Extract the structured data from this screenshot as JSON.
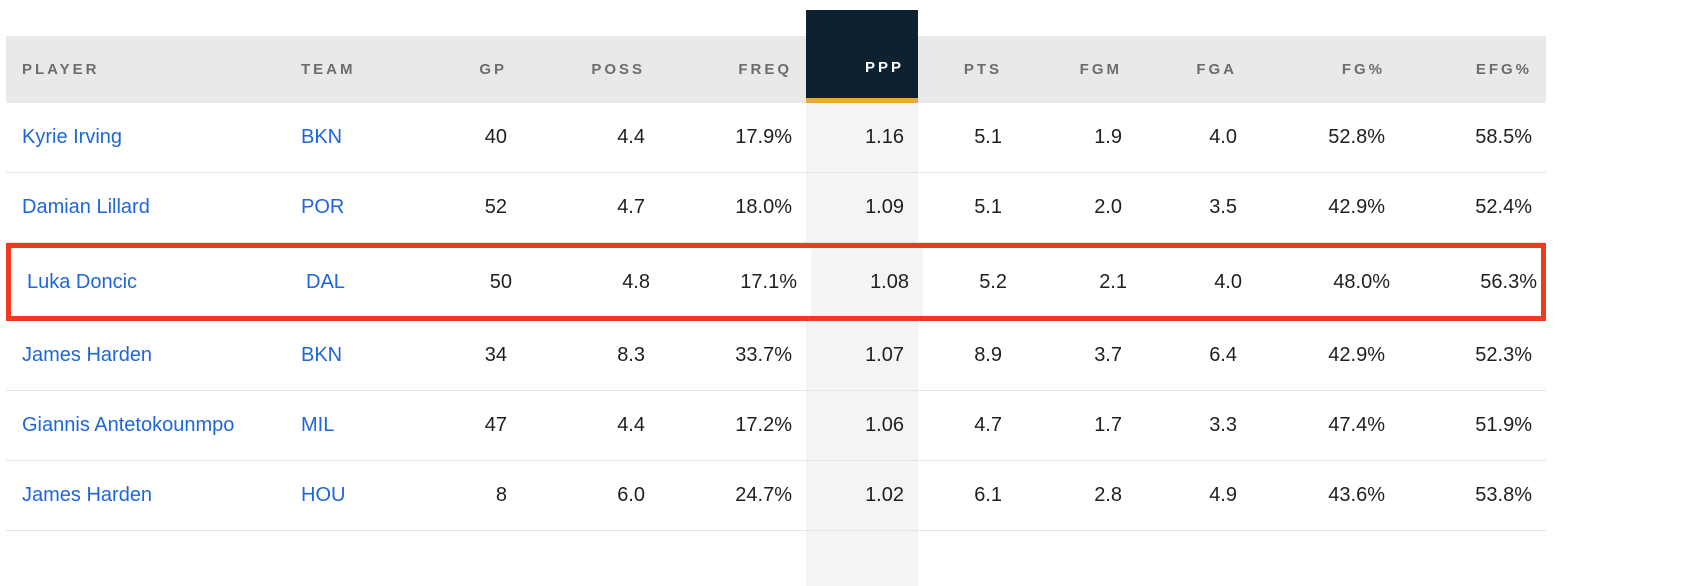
{
  "table": {
    "sort_column": "PPP",
    "columns": [
      {
        "key": "player",
        "label": "PLAYER",
        "align": "left",
        "sorted": false
      },
      {
        "key": "team",
        "label": "TEAM",
        "align": "left",
        "sorted": false
      },
      {
        "key": "gp",
        "label": "GP",
        "align": "right",
        "sorted": false
      },
      {
        "key": "poss",
        "label": "POSS",
        "align": "right",
        "sorted": false
      },
      {
        "key": "freq",
        "label": "FREQ",
        "align": "right",
        "sorted": false
      },
      {
        "key": "ppp",
        "label": "PPP",
        "align": "right",
        "sorted": true
      },
      {
        "key": "pts",
        "label": "PTS",
        "align": "right",
        "sorted": false
      },
      {
        "key": "fgm",
        "label": "FGM",
        "align": "right",
        "sorted": false
      },
      {
        "key": "fga",
        "label": "FGA",
        "align": "right",
        "sorted": false
      },
      {
        "key": "fg_pct",
        "label": "FG%",
        "align": "right",
        "sorted": false
      },
      {
        "key": "efg_pct",
        "label": "EFG%",
        "align": "right",
        "sorted": false
      }
    ],
    "rows": [
      {
        "player": "Kyrie Irving",
        "team": "BKN",
        "gp": "40",
        "poss": "4.4",
        "freq": "17.9%",
        "ppp": "1.16",
        "pts": "5.1",
        "fgm": "1.9",
        "fga": "4.0",
        "fg_pct": "52.8%",
        "efg_pct": "58.5%",
        "highlighted": false
      },
      {
        "player": "Damian Lillard",
        "team": "POR",
        "gp": "52",
        "poss": "4.7",
        "freq": "18.0%",
        "ppp": "1.09",
        "pts": "5.1",
        "fgm": "2.0",
        "fga": "3.5",
        "fg_pct": "42.9%",
        "efg_pct": "52.4%",
        "highlighted": false
      },
      {
        "player": "Luka Doncic",
        "team": "DAL",
        "gp": "50",
        "poss": "4.8",
        "freq": "17.1%",
        "ppp": "1.08",
        "pts": "5.2",
        "fgm": "2.1",
        "fga": "4.0",
        "fg_pct": "48.0%",
        "efg_pct": "56.3%",
        "highlighted": true
      },
      {
        "player": "James Harden",
        "team": "BKN",
        "gp": "34",
        "poss": "8.3",
        "freq": "33.7%",
        "ppp": "1.07",
        "pts": "8.9",
        "fgm": "3.7",
        "fga": "6.4",
        "fg_pct": "42.9%",
        "efg_pct": "52.3%",
        "highlighted": false
      },
      {
        "player": "Giannis Antetokounmpo",
        "team": "MIL",
        "gp": "47",
        "poss": "4.4",
        "freq": "17.2%",
        "ppp": "1.06",
        "pts": "4.7",
        "fgm": "1.7",
        "fga": "3.3",
        "fg_pct": "47.4%",
        "efg_pct": "51.9%",
        "highlighted": false
      },
      {
        "player": "James Harden",
        "team": "HOU",
        "gp": "8",
        "poss": "6.0",
        "freq": "24.7%",
        "ppp": "1.02",
        "pts": "6.1",
        "fgm": "2.8",
        "fga": "4.9",
        "fg_pct": "43.6%",
        "efg_pct": "53.8%",
        "highlighted": false
      }
    ]
  },
  "colors": {
    "link_blue": "#1d66dd",
    "header_bg": "#e9e9e9",
    "header_text": "#6d6d6d",
    "sorted_header_bg": "#0e2130",
    "sorted_header_underline": "#eea63a",
    "sorted_column_band": "#f4f4f4",
    "highlight_border": "#f0391f",
    "row_divider": "#e4e4e4",
    "body_text": "#1f1f1f"
  }
}
